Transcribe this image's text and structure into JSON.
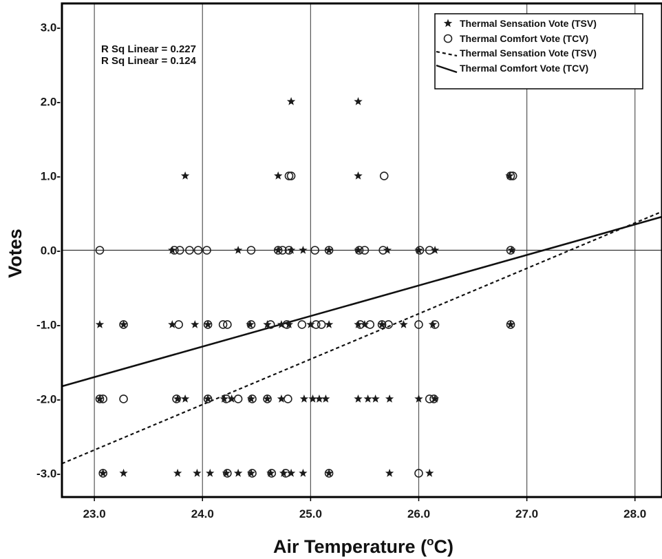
{
  "chart_data": {
    "type": "scatter",
    "title": "",
    "xlabel": "Air Temperature (",
    "xlabel_sup": "o",
    "xlabel_end": "C)",
    "ylabel": "Votes",
    "xlim": [
      22.7,
      28.25
    ],
    "ylim": [
      -3.32,
      3.32
    ],
    "x_ticks": [
      23.0,
      24.0,
      25.0,
      26.0,
      27.0,
      28.0
    ],
    "x_tick_labels": [
      "23.0",
      "24.0",
      "25.0",
      "26.0",
      "27.0",
      "28.0"
    ],
    "y_ticks": [
      3,
      2,
      1,
      0,
      -1,
      -2,
      -3
    ],
    "y_tick_labels": [
      "3.0-",
      "2.0-",
      "1.0-",
      "0.0-",
      "-1.0-",
      "-2.0-",
      "-3.0-"
    ],
    "grid": "vertical at x ticks, horizontal reference line at y = 0",
    "legend_position": "top-right",
    "annotations": [
      "R Sq Linear = 0.227",
      "R Sq Linear = 0.124"
    ],
    "legend": [
      {
        "label": "Thermal Sensation Vote (TSV)",
        "symbol": "star"
      },
      {
        "label": "Thermal Comfort Vote (TCV)",
        "symbol": "circle"
      },
      {
        "label": "Thermal Sensation Vote (TSV)",
        "symbol": "dashed-line"
      },
      {
        "label": "Thermal Comfort Vote (TCV)",
        "symbol": "solid-line"
      }
    ],
    "series": [
      {
        "name": "Thermal Sensation Vote (TSV)",
        "marker": "star",
        "points": [
          [
            23.05,
            -1
          ],
          [
            23.05,
            -2
          ],
          [
            23.08,
            -3
          ],
          [
            23.27,
            -1
          ],
          [
            23.27,
            -3
          ],
          [
            23.72,
            0
          ],
          [
            23.72,
            -1
          ],
          [
            23.77,
            -2
          ],
          [
            23.77,
            -3
          ],
          [
            23.84,
            1
          ],
          [
            23.84,
            -2
          ],
          [
            23.93,
            -1
          ],
          [
            23.95,
            -3
          ],
          [
            24.05,
            -1
          ],
          [
            24.05,
            -2
          ],
          [
            24.07,
            -3
          ],
          [
            24.2,
            -2
          ],
          [
            24.22,
            -3
          ],
          [
            24.27,
            -2
          ],
          [
            24.33,
            0
          ],
          [
            24.33,
            -3
          ],
          [
            24.44,
            -1
          ],
          [
            24.45,
            -2
          ],
          [
            24.45,
            -3
          ],
          [
            24.6,
            -1
          ],
          [
            24.6,
            -2
          ],
          [
            24.63,
            -3
          ],
          [
            24.7,
            1
          ],
          [
            24.7,
            0
          ],
          [
            24.73,
            -1
          ],
          [
            24.73,
            -2
          ],
          [
            24.75,
            -3
          ],
          [
            24.8,
            -1
          ],
          [
            24.82,
            2
          ],
          [
            24.82,
            0
          ],
          [
            24.82,
            -3
          ],
          [
            24.93,
            0
          ],
          [
            24.93,
            -3
          ],
          [
            24.94,
            -2
          ],
          [
            25.0,
            -1
          ],
          [
            25.02,
            -2
          ],
          [
            25.08,
            -2
          ],
          [
            25.14,
            -2
          ],
          [
            25.17,
            0
          ],
          [
            25.17,
            -1
          ],
          [
            25.17,
            -3
          ],
          [
            25.44,
            2
          ],
          [
            25.44,
            1
          ],
          [
            25.44,
            0
          ],
          [
            25.44,
            -1
          ],
          [
            25.44,
            -2
          ],
          [
            25.5,
            -1
          ],
          [
            25.53,
            -2
          ],
          [
            25.6,
            -2
          ],
          [
            25.66,
            -1
          ],
          [
            25.71,
            0
          ],
          [
            25.73,
            -2
          ],
          [
            25.73,
            -3
          ],
          [
            25.86,
            -1
          ],
          [
            26.0,
            0
          ],
          [
            26.0,
            -2
          ],
          [
            26.1,
            -3
          ],
          [
            26.13,
            -1
          ],
          [
            26.15,
            -2
          ],
          [
            26.15,
            0
          ],
          [
            26.84,
            1
          ],
          [
            26.86,
            0
          ],
          [
            26.85,
            -1
          ]
        ]
      },
      {
        "name": "Thermal Comfort Vote (TCV)",
        "marker": "circle",
        "points": [
          [
            23.05,
            0
          ],
          [
            23.05,
            -2
          ],
          [
            23.08,
            -2
          ],
          [
            23.27,
            -1
          ],
          [
            23.27,
            -2
          ],
          [
            23.08,
            -3
          ],
          [
            23.74,
            0
          ],
          [
            23.79,
            0
          ],
          [
            23.78,
            -1
          ],
          [
            23.76,
            -2
          ],
          [
            23.88,
            0
          ],
          [
            23.96,
            0
          ],
          [
            24.04,
            0
          ],
          [
            24.05,
            -1
          ],
          [
            24.05,
            -2
          ],
          [
            24.19,
            -1
          ],
          [
            24.23,
            -1
          ],
          [
            24.22,
            -2
          ],
          [
            24.33,
            -2
          ],
          [
            24.23,
            -3
          ],
          [
            24.45,
            0
          ],
          [
            24.45,
            -1
          ],
          [
            24.46,
            -2
          ],
          [
            24.46,
            -3
          ],
          [
            24.63,
            -1
          ],
          [
            24.6,
            -2
          ],
          [
            24.64,
            -3
          ],
          [
            24.7,
            0
          ],
          [
            24.74,
            0
          ],
          [
            24.82,
            1
          ],
          [
            24.8,
            1
          ],
          [
            24.8,
            0
          ],
          [
            24.78,
            -1
          ],
          [
            24.79,
            -2
          ],
          [
            24.77,
            -3
          ],
          [
            24.92,
            -1
          ],
          [
            25.04,
            0
          ],
          [
            25.05,
            -1
          ],
          [
            25.1,
            -1
          ],
          [
            25.17,
            0
          ],
          [
            25.17,
            -3
          ],
          [
            25.45,
            0
          ],
          [
            25.46,
            -1
          ],
          [
            25.5,
            0
          ],
          [
            25.55,
            -1
          ],
          [
            25.68,
            1
          ],
          [
            25.66,
            -1
          ],
          [
            25.67,
            0
          ],
          [
            25.72,
            -1
          ],
          [
            26.0,
            -1
          ],
          [
            26.0,
            -3
          ],
          [
            26.01,
            0
          ],
          [
            26.1,
            0
          ],
          [
            26.1,
            -2
          ],
          [
            26.15,
            -1
          ],
          [
            26.14,
            -2
          ],
          [
            26.85,
            1
          ],
          [
            26.87,
            1
          ],
          [
            26.85,
            0
          ],
          [
            26.85,
            -1
          ]
        ]
      }
    ],
    "fit_lines": [
      {
        "name": "Thermal Sensation Vote (TSV)",
        "style": "dashed",
        "points": [
          [
            22.7,
            -2.87
          ],
          [
            28.25,
            0.52
          ]
        ]
      },
      {
        "name": "Thermal Comfort Vote (TCV)",
        "style": "solid",
        "points": [
          [
            22.7,
            -1.83
          ],
          [
            28.25,
            0.45
          ]
        ]
      }
    ]
  }
}
